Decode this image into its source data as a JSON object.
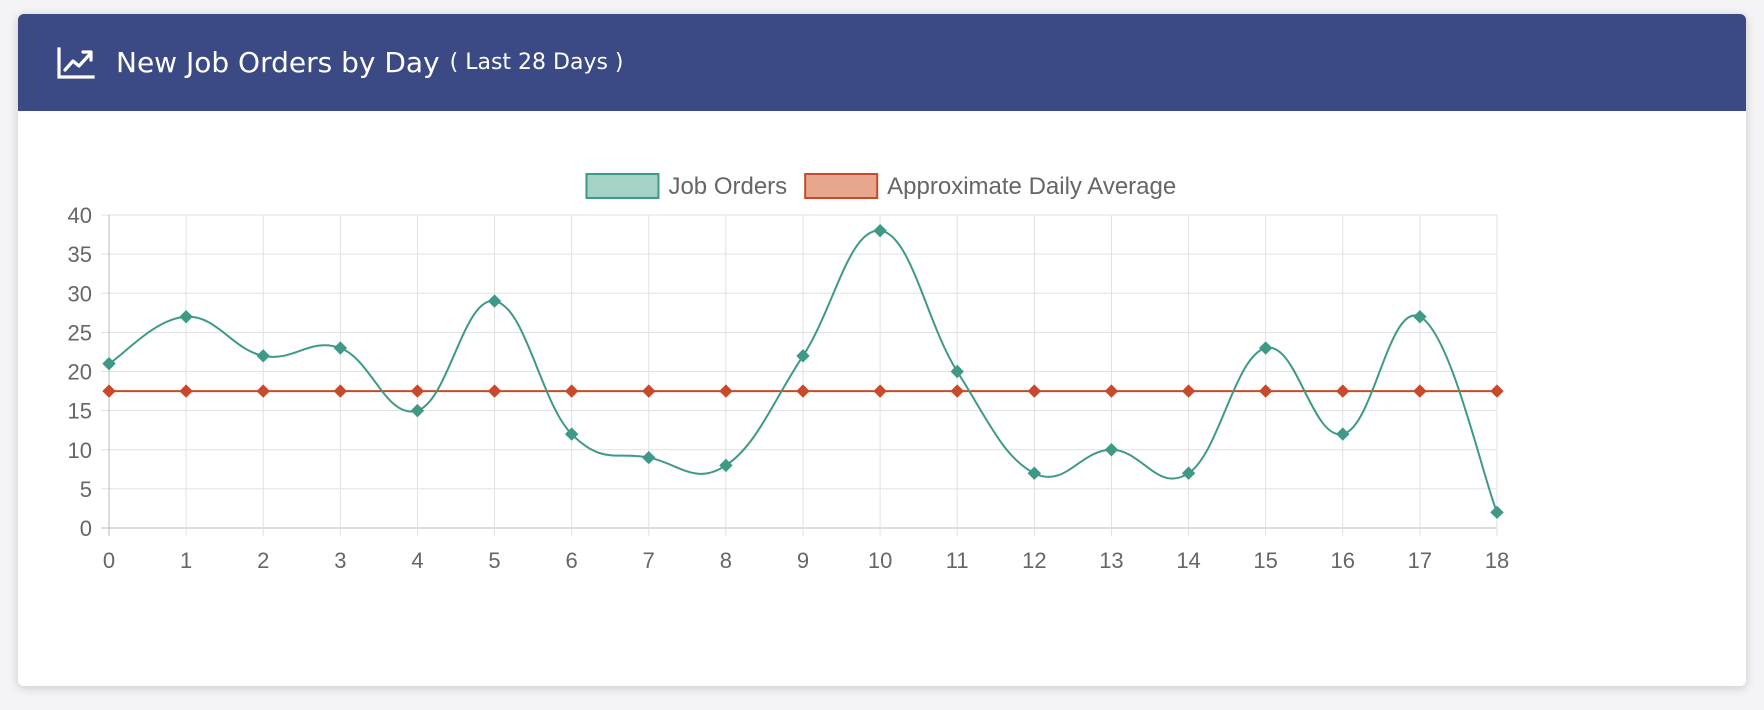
{
  "header": {
    "title": "New Job Orders by Day",
    "subtitle": "( Last 28 Days )",
    "icon": "line-chart-icon"
  },
  "colors": {
    "header_bg": "#3b4985",
    "series_1_line": "#3f9987",
    "series_1_fill": "#a4d2c7",
    "series_2_line": "#c9492a",
    "series_2_fill": "#e8a78d",
    "grid": "#e1e1e1",
    "tick_text": "#666666"
  },
  "chart_data": {
    "type": "line",
    "title": "",
    "xlabel": "",
    "ylabel": "",
    "x": [
      0,
      1,
      2,
      3,
      4,
      5,
      6,
      7,
      8,
      9,
      10,
      11,
      12,
      13,
      14,
      15,
      16,
      17,
      18
    ],
    "ylim": [
      0,
      40
    ],
    "yticks": [
      0,
      5,
      10,
      15,
      20,
      25,
      30,
      35,
      40
    ],
    "grid": true,
    "legend": "top-center",
    "point_style": "diamond",
    "curve": "smooth",
    "series": [
      {
        "name": "Job Orders",
        "values": [
          21,
          27,
          22,
          23,
          15,
          29,
          12,
          9,
          8,
          22,
          38,
          20,
          7,
          10,
          7,
          23,
          12,
          27,
          2
        ]
      },
      {
        "name": "Approximate Daily Average",
        "values": [
          17.5,
          17.5,
          17.5,
          17.5,
          17.5,
          17.5,
          17.5,
          17.5,
          17.5,
          17.5,
          17.5,
          17.5,
          17.5,
          17.5,
          17.5,
          17.5,
          17.5,
          17.5,
          17.5
        ]
      }
    ]
  }
}
